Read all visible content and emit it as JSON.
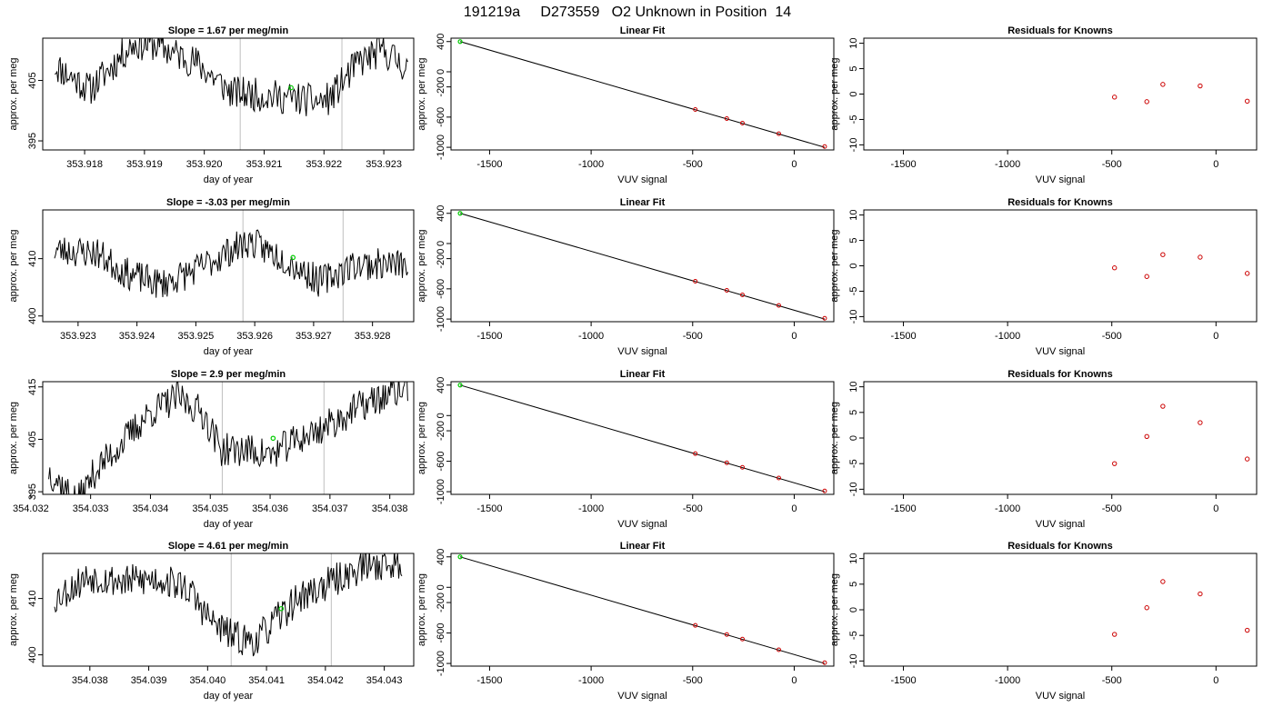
{
  "figure": {
    "title": "191219a     D273559   O2 Unknown in Position  14"
  },
  "chart_data": [
    {
      "type": "line",
      "title": "Slope =  1.67  per meg/min",
      "xlabel": "day of year",
      "ylabel": "approx. per meg",
      "xticks": [
        "353.918",
        "353.919",
        "353.920",
        "353.921",
        "353.922",
        "353.923"
      ],
      "xtick_values": [
        353.918,
        353.919,
        353.92,
        353.921,
        353.922,
        353.923
      ],
      "yticks": [
        "395",
        "405"
      ],
      "ytick_values": [
        395,
        405
      ],
      "xlim": [
        353.9173,
        353.9235
      ],
      "ylim": [
        393.5,
        412
      ],
      "vlines": [
        353.9206,
        353.9223
      ],
      "trace_start": 353.9175,
      "trace_end": 353.9234,
      "marker": {
        "x": 353.92145,
        "y": 403.8,
        "color": "#00cc00"
      },
      "pattern": [
        {
          "x": 0,
          "y": 407.5
        },
        {
          "x": 0.1,
          "y": 403.5
        },
        {
          "x": 0.22,
          "y": 411
        },
        {
          "x": 0.28,
          "y": 411
        },
        {
          "x": 0.4,
          "y": 408
        },
        {
          "x": 0.5,
          "y": 403
        },
        {
          "x": 0.6,
          "y": 402.5
        },
        {
          "x": 0.68,
          "y": 402
        },
        {
          "x": 0.75,
          "y": 401.5
        },
        {
          "x": 0.78,
          "y": 402
        },
        {
          "x": 0.86,
          "y": 408
        },
        {
          "x": 0.93,
          "y": 410
        },
        {
          "x": 1,
          "y": 407
        }
      ],
      "noise": 2.8,
      "seed": 11
    },
    {
      "type": "line",
      "title": "Linear Fit",
      "xlabel": "VUV signal",
      "ylabel": "approx. per meg",
      "xticks": [
        "-1500",
        "-1000",
        "-500",
        "0"
      ],
      "xtick_values": [
        -1500,
        -1000,
        -500,
        0
      ],
      "yticks": [
        "-1000",
        "-600",
        "-200",
        "0",
        "400"
      ],
      "ytick_values": [
        -1000,
        -600,
        -200,
        0,
        400
      ],
      "xlim": [
        -1690,
        195
      ],
      "ylim": [
        -1035,
        445
      ],
      "fit_line": [
        [
          -1645,
          400
        ],
        [
          150,
          -1000
        ]
      ],
      "points": [
        [
          -487,
          -500
        ],
        [
          -332,
          -620
        ],
        [
          -255,
          -680
        ],
        [
          -76,
          -820
        ],
        [
          150,
          -990
        ]
      ],
      "green_point": [
        -1645,
        400
      ]
    },
    {
      "type": "scatter",
      "title": "Residuals for Knowns",
      "xlabel": "VUV signal",
      "ylabel": "approx. per meg",
      "xticks": [
        "-1500",
        "-1000",
        "-500",
        "0"
      ],
      "xtick_values": [
        -1500,
        -1000,
        -500,
        0
      ],
      "yticks": [
        "-10",
        "-5",
        "0",
        "5",
        "10"
      ],
      "ytick_values": [
        -10,
        -5,
        0,
        5,
        10
      ],
      "xlim": [
        -1690,
        195
      ],
      "ylim": [
        -11,
        11
      ],
      "points": [
        [
          -487,
          -0.6
        ],
        [
          -332,
          -1.5
        ],
        [
          -255,
          1.9
        ],
        [
          -76,
          1.6
        ],
        [
          150,
          -1.4
        ]
      ]
    },
    {
      "type": "line",
      "title": "Slope =  -3.03  per meg/min",
      "xlabel": "day of year",
      "ylabel": "approx. per meg",
      "xticks": [
        "353.923",
        "353.924",
        "353.925",
        "353.926",
        "353.927",
        "353.928"
      ],
      "xtick_values": [
        353.923,
        353.924,
        353.925,
        353.926,
        353.927,
        353.928
      ],
      "yticks": [
        "400",
        "410"
      ],
      "ytick_values": [
        400,
        410
      ],
      "xlim": [
        353.9224,
        353.9287
      ],
      "ylim": [
        399,
        418.5
      ],
      "vlines": [
        353.9258,
        353.9275
      ],
      "trace_start": 353.9226,
      "trace_end": 353.9286,
      "marker": {
        "x": 353.92665,
        "y": 410.2,
        "color": "#00cc00"
      },
      "pattern": [
        {
          "x": 0,
          "y": 411.5
        },
        {
          "x": 0.12,
          "y": 411
        },
        {
          "x": 0.2,
          "y": 407.5
        },
        {
          "x": 0.3,
          "y": 405.5
        },
        {
          "x": 0.4,
          "y": 408
        },
        {
          "x": 0.5,
          "y": 411.5
        },
        {
          "x": 0.55,
          "y": 413
        },
        {
          "x": 0.65,
          "y": 410
        },
        {
          "x": 0.75,
          "y": 406
        },
        {
          "x": 0.85,
          "y": 409
        },
        {
          "x": 1,
          "y": 409
        }
      ],
      "noise": 2.8,
      "seed": 23
    },
    {
      "type": "line",
      "title": "Linear Fit",
      "xlabel": "VUV signal",
      "ylabel": "approx. per meg",
      "xticks": [
        "-1500",
        "-1000",
        "-500",
        "0"
      ],
      "xtick_values": [
        -1500,
        -1000,
        -500,
        0
      ],
      "yticks": [
        "-1000",
        "-600",
        "-200",
        "0",
        "400"
      ],
      "ytick_values": [
        -1000,
        -600,
        -200,
        0,
        400
      ],
      "xlim": [
        -1690,
        195
      ],
      "ylim": [
        -1035,
        445
      ],
      "fit_line": [
        [
          -1645,
          400
        ],
        [
          150,
          -1000
        ]
      ],
      "points": [
        [
          -487,
          -500
        ],
        [
          -332,
          -620
        ],
        [
          -255,
          -680
        ],
        [
          -76,
          -820
        ],
        [
          150,
          -990
        ]
      ],
      "green_point": [
        -1645,
        400
      ]
    },
    {
      "type": "scatter",
      "title": "Residuals for Knowns",
      "xlabel": "VUV signal",
      "ylabel": "approx. per meg",
      "xticks": [
        "-1500",
        "-1000",
        "-500",
        "0"
      ],
      "xtick_values": [
        -1500,
        -1000,
        -500,
        0
      ],
      "yticks": [
        "-10",
        "-5",
        "0",
        "5",
        "10"
      ],
      "ytick_values": [
        -10,
        -5,
        0,
        5,
        10
      ],
      "xlim": [
        -1690,
        195
      ],
      "ylim": [
        -11,
        11
      ],
      "points": [
        [
          -487,
          -0.4
        ],
        [
          -332,
          -2.1
        ],
        [
          -255,
          2.2
        ],
        [
          -76,
          1.7
        ],
        [
          150,
          -1.5
        ]
      ]
    },
    {
      "type": "line",
      "title": "Slope =  2.9  per meg/min",
      "xlabel": "day of year",
      "ylabel": "approx. per meg",
      "xticks": [
        "354.032",
        "354.033",
        "354.034",
        "354.035",
        "354.036",
        "354.037",
        "354.038"
      ],
      "xtick_values": [
        354.032,
        354.033,
        354.034,
        354.035,
        354.036,
        354.037,
        354.038
      ],
      "yticks": [
        "395",
        "405",
        "415"
      ],
      "ytick_values": [
        395,
        405,
        415
      ],
      "xlim": [
        354.0322,
        354.0384
      ],
      "ylim": [
        394.5,
        416
      ],
      "vlines": [
        354.0352,
        354.0369
      ],
      "trace_start": 354.0323,
      "trace_end": 354.0383,
      "marker": {
        "x": 354.03605,
        "y": 405.2,
        "color": "#00cc00"
      },
      "pattern": [
        {
          "x": 0,
          "y": 399
        },
        {
          "x": 0.08,
          "y": 393
        },
        {
          "x": 0.13,
          "y": 399
        },
        {
          "x": 0.2,
          "y": 404
        },
        {
          "x": 0.28,
          "y": 410
        },
        {
          "x": 0.36,
          "y": 413
        },
        {
          "x": 0.43,
          "y": 410
        },
        {
          "x": 0.48,
          "y": 403
        },
        {
          "x": 0.55,
          "y": 403
        },
        {
          "x": 0.62,
          "y": 402
        },
        {
          "x": 0.68,
          "y": 404.5
        },
        {
          "x": 0.76,
          "y": 407
        },
        {
          "x": 0.86,
          "y": 411
        },
        {
          "x": 1,
          "y": 415
        }
      ],
      "noise": 3.2,
      "seed": 37
    },
    {
      "type": "line",
      "title": "Linear Fit",
      "xlabel": "VUV signal",
      "ylabel": "approx. per meg",
      "xticks": [
        "-1500",
        "-1000",
        "-500",
        "0"
      ],
      "xtick_values": [
        -1500,
        -1000,
        -500,
        0
      ],
      "yticks": [
        "-1000",
        "-600",
        "-200",
        "0",
        "400"
      ],
      "ytick_values": [
        -1000,
        -600,
        -200,
        0,
        400
      ],
      "xlim": [
        -1690,
        195
      ],
      "ylim": [
        -1035,
        445
      ],
      "fit_line": [
        [
          -1645,
          400
        ],
        [
          150,
          -1000
        ]
      ],
      "points": [
        [
          -487,
          -500
        ],
        [
          -332,
          -620
        ],
        [
          -255,
          -680
        ],
        [
          -76,
          -820
        ],
        [
          150,
          -990
        ]
      ],
      "green_point": [
        -1645,
        400
      ]
    },
    {
      "type": "scatter",
      "title": "Residuals for Knowns",
      "xlabel": "VUV signal",
      "ylabel": "approx. per meg",
      "xticks": [
        "-1500",
        "-1000",
        "-500",
        "0"
      ],
      "xtick_values": [
        -1500,
        -1000,
        -500,
        0
      ],
      "yticks": [
        "-10",
        "-5",
        "0",
        "5",
        "10"
      ],
      "ytick_values": [
        -10,
        -5,
        0,
        5,
        10
      ],
      "xlim": [
        -1690,
        195
      ],
      "ylim": [
        -11,
        11
      ],
      "points": [
        [
          -487,
          -5.0
        ],
        [
          -332,
          0.3
        ],
        [
          -255,
          6.2
        ],
        [
          -76,
          3.0
        ],
        [
          150,
          -4.1
        ]
      ]
    },
    {
      "type": "line",
      "title": "Slope =  4.61  per meg/min",
      "xlabel": "day of year",
      "ylabel": "approx. per meg",
      "xticks": [
        "354.038",
        "354.039",
        "354.040",
        "354.041",
        "354.042",
        "354.043"
      ],
      "xtick_values": [
        354.038,
        354.039,
        354.04,
        354.041,
        354.042,
        354.043
      ],
      "yticks": [
        "400",
        "410"
      ],
      "ytick_values": [
        400,
        410
      ],
      "xlim": [
        354.0372,
        354.0435
      ],
      "ylim": [
        398,
        418
      ],
      "vlines": [
        354.0404,
        354.0421
      ],
      "trace_start": 354.0374,
      "trace_end": 354.0433,
      "marker": {
        "x": 354.04125,
        "y": 408.2,
        "color": "#00cc00"
      },
      "pattern": [
        {
          "x": 0,
          "y": 410
        },
        {
          "x": 0.1,
          "y": 414
        },
        {
          "x": 0.2,
          "y": 413
        },
        {
          "x": 0.3,
          "y": 413.5
        },
        {
          "x": 0.38,
          "y": 412
        },
        {
          "x": 0.45,
          "y": 406
        },
        {
          "x": 0.52,
          "y": 403
        },
        {
          "x": 0.58,
          "y": 402.5
        },
        {
          "x": 0.62,
          "y": 405
        },
        {
          "x": 0.7,
          "y": 410
        },
        {
          "x": 0.8,
          "y": 413
        },
        {
          "x": 0.9,
          "y": 416
        },
        {
          "x": 1,
          "y": 416
        }
      ],
      "noise": 3.0,
      "seed": 53
    },
    {
      "type": "line",
      "title": "Linear Fit",
      "xlabel": "VUV signal",
      "ylabel": "approx. per meg",
      "xticks": [
        "-1500",
        "-1000",
        "-500",
        "0"
      ],
      "xtick_values": [
        -1500,
        -1000,
        -500,
        0
      ],
      "yticks": [
        "-1000",
        "-600",
        "-200",
        "0",
        "400"
      ],
      "ytick_values": [
        -1000,
        -600,
        -200,
        0,
        400
      ],
      "xlim": [
        -1690,
        195
      ],
      "ylim": [
        -1035,
        445
      ],
      "fit_line": [
        [
          -1645,
          400
        ],
        [
          150,
          -1000
        ]
      ],
      "points": [
        [
          -487,
          -500
        ],
        [
          -332,
          -620
        ],
        [
          -255,
          -680
        ],
        [
          -76,
          -820
        ],
        [
          150,
          -990
        ]
      ],
      "green_point": [
        -1645,
        400
      ]
    },
    {
      "type": "scatter",
      "title": "Residuals for Knowns",
      "xlabel": "VUV signal",
      "ylabel": "approx. per meg",
      "xticks": [
        "-1500",
        "-1000",
        "-500",
        "0"
      ],
      "xtick_values": [
        -1500,
        -1000,
        -500,
        0
      ],
      "yticks": [
        "-10",
        "-5",
        "0",
        "5",
        "10"
      ],
      "ytick_values": [
        -10,
        -5,
        0,
        5,
        10
      ],
      "xlim": [
        -1690,
        195
      ],
      "ylim": [
        -11,
        11
      ],
      "points": [
        [
          -487,
          -4.8
        ],
        [
          -332,
          0.4
        ],
        [
          -255,
          5.5
        ],
        [
          -76,
          3.1
        ],
        [
          150,
          -4.0
        ]
      ]
    }
  ],
  "colors": {
    "line": "#000000",
    "vline": "#bfbfbf",
    "green": "#00cc00",
    "red": "#cc0000"
  }
}
